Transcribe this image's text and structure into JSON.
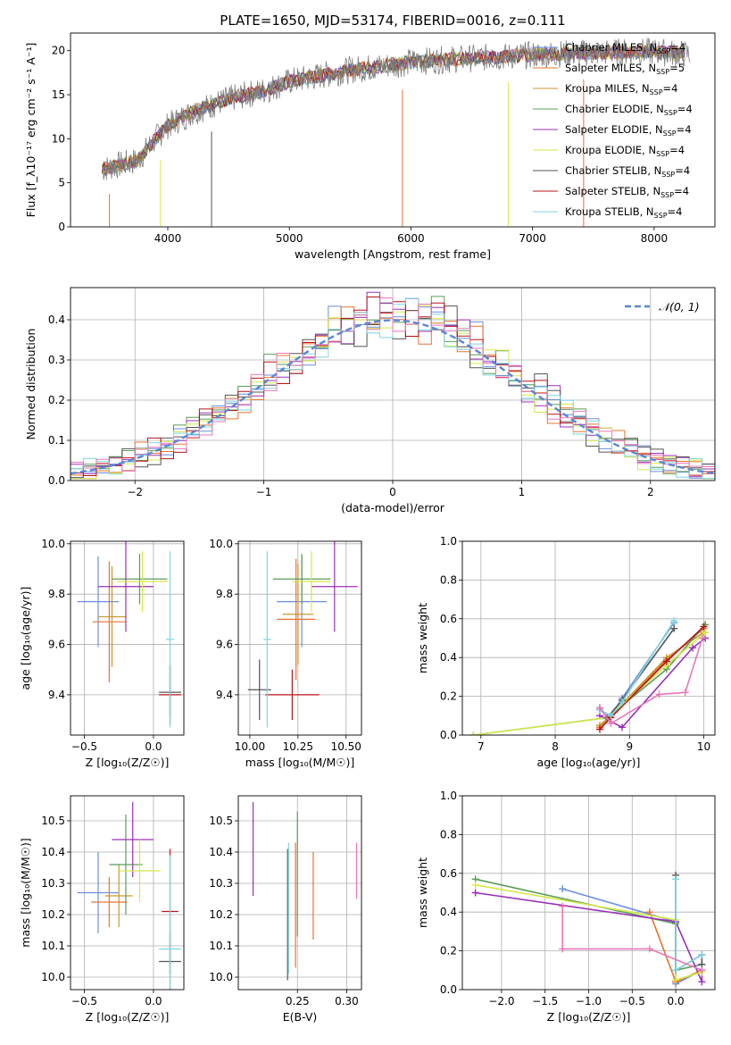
{
  "title": "PLATE=1650, MJD=53174, FIBERID=0016, z=0.111",
  "colors": {
    "Chabrier MILES": "#6b8fdc",
    "Salpeter MILES": "#e8732f",
    "Kroupa MILES": "#c9962c",
    "Chabrier ELODIE": "#5a9e58",
    "Salpeter ELODIE": "#9b30b8",
    "Kroupa ELODIE": "#d6e84a",
    "Chabrier STELIB": "#555555",
    "Salpeter STELIB": "#b8141b",
    "Kroupa STELIB": "#7fd6df",
    "spectrum": "#808080",
    "normal": "#5b86d6",
    "pinkSeries": "#e878b8",
    "greenSeries": "#5a9e58"
  },
  "chart_data": [
    {
      "type": "line",
      "id": "spectrum",
      "title": "PLATE=1650, MJD=53174, FIBERID=0016, z=0.111",
      "xlabel": "wavelength [Angstrom, rest frame]",
      "ylabel": "Flux [f_λ10⁻¹⁷ erg cm⁻² s⁻¹ A⁻¹]",
      "xlim": [
        3200,
        8500
      ],
      "ylim": [
        0,
        22
      ],
      "xticks": [
        "4000",
        "5000",
        "6000",
        "7000",
        "8000"
      ],
      "yticks": [
        "0",
        "5",
        "10",
        "15",
        "20"
      ],
      "grid": false,
      "legend": "top-right",
      "legend_entries": [
        {
          "model": "Chabrier MILES",
          "n": "4"
        },
        {
          "model": "Salpeter MILES",
          "n": "5"
        },
        {
          "model": "Kroupa MILES",
          "n": "4"
        },
        {
          "model": "Chabrier ELODIE",
          "n": "4"
        },
        {
          "model": "Salpeter ELODIE",
          "n": "4"
        },
        {
          "model": "Kroupa ELODIE",
          "n": "4"
        },
        {
          "model": "Chabrier STELIB",
          "n": "4"
        },
        {
          "model": "Salpeter STELIB",
          "n": "4"
        },
        {
          "model": "Kroupa STELIB",
          "n": "4"
        }
      ],
      "continuum": {
        "x": [
          3450,
          3600,
          3750,
          3900,
          4000,
          4200,
          4500,
          4800,
          5000,
          5200,
          5500,
          5800,
          6000,
          6300,
          6600,
          7000,
          7300,
          7600,
          8000,
          8250
        ],
        "y": [
          6.5,
          7.0,
          7.5,
          10.0,
          11.5,
          13.0,
          14.5,
          15.5,
          16.5,
          17.0,
          17.8,
          18.3,
          18.7,
          19.0,
          19.2,
          19.5,
          19.7,
          19.8,
          19.9,
          19.6
        ]
      }
    },
    {
      "type": "step",
      "id": "residuals",
      "xlabel": "(data-model)/error",
      "ylabel": "Normed distribution",
      "xlim": [
        -2.5,
        2.5
      ],
      "ylim": [
        0,
        0.48
      ],
      "xticks": [
        "-2",
        "-1",
        "0",
        "1",
        "2"
      ],
      "yticks": [
        "0.0",
        "0.1",
        "0.2",
        "0.3",
        "0.4"
      ],
      "grid": true,
      "legend": "top-right",
      "legend_entries": [
        {
          "model": "N(0,1)"
        }
      ],
      "bin_centers": [
        -2.45,
        -2.35,
        -2.25,
        -2.15,
        -2.05,
        -1.95,
        -1.85,
        -1.75,
        -1.65,
        -1.55,
        -1.45,
        -1.35,
        -1.25,
        -1.15,
        -1.05,
        -0.95,
        -0.85,
        -0.75,
        -0.65,
        -0.55,
        -0.45,
        -0.35,
        -0.25,
        -0.15,
        -0.05,
        0.05,
        0.15,
        0.25,
        0.35,
        0.45,
        0.55,
        0.65,
        0.75,
        0.85,
        0.95,
        1.05,
        1.15,
        1.25,
        1.35,
        1.45,
        1.55,
        1.65,
        1.75,
        1.85,
        1.95,
        2.05,
        2.15,
        2.25,
        2.35,
        2.45
      ]
    },
    {
      "type": "scatter",
      "id": "age-vs-Z",
      "xlabel": "Z [log₁₀(Z/Z☉)]",
      "ylabel": "age [log₁₀(age/yr)]",
      "xlim": [
        -0.6,
        0.22
      ],
      "ylim": [
        9.24,
        10.01
      ],
      "xticks": [
        "-0.5",
        "0.0"
      ],
      "yticks": [
        "9.4",
        "9.6",
        "9.8",
        "10.0"
      ],
      "grid": true,
      "points": [
        {
          "model": "Chabrier MILES",
          "x": -0.4,
          "y": 9.77,
          "xerr": 0.15,
          "yerr": 0.18
        },
        {
          "model": "Salpeter MILES",
          "x": -0.32,
          "y": 9.69,
          "xerr": 0.12,
          "yerr": 0.24
        },
        {
          "model": "Kroupa MILES",
          "x": -0.3,
          "y": 9.71,
          "xerr": 0.1,
          "yerr": 0.2
        },
        {
          "model": "Chabrier ELODIE",
          "x": -0.1,
          "y": 9.86,
          "xerr": 0.2,
          "yerr": 0.1
        },
        {
          "model": "Salpeter ELODIE",
          "x": -0.2,
          "y": 9.83,
          "xerr": 0.2,
          "yerr": 0.18
        },
        {
          "model": "Kroupa ELODIE",
          "x": -0.08,
          "y": 9.85,
          "xerr": 0.18,
          "yerr": 0.12
        },
        {
          "model": "Chabrier STELIB",
          "x": 0.12,
          "y": 9.41,
          "xerr": 0.08,
          "yerr": 0.1
        },
        {
          "model": "Salpeter STELIB",
          "x": 0.12,
          "y": 9.4,
          "xerr": 0.08,
          "yerr": 0.12
        },
        {
          "model": "Kroupa STELIB",
          "x": 0.12,
          "y": 9.62,
          "xerr": 0.03,
          "yerr": 0.35
        }
      ]
    },
    {
      "type": "scatter",
      "id": "age-vs-mass",
      "xlabel": "mass [log₁₀(M/M☉)]",
      "ylabel": "",
      "xlim": [
        9.94,
        10.58
      ],
      "ylim": [
        9.24,
        10.01
      ],
      "xticks": [
        "10.00",
        "10.25",
        "10.50"
      ],
      "yticks": [
        "9.4",
        "9.6",
        "9.8",
        "10.0"
      ],
      "grid": true,
      "points": [
        {
          "model": "Chabrier MILES",
          "x": 10.27,
          "y": 9.77,
          "xerr": 0.13,
          "yerr": 0.18
        },
        {
          "model": "Salpeter MILES",
          "x": 10.24,
          "y": 9.7,
          "xerr": 0.1,
          "yerr": 0.24
        },
        {
          "model": "Kroupa MILES",
          "x": 10.25,
          "y": 9.72,
          "xerr": 0.08,
          "yerr": 0.2
        },
        {
          "model": "Chabrier ELODIE",
          "x": 10.27,
          "y": 9.86,
          "xerr": 0.15,
          "yerr": 0.1
        },
        {
          "model": "Salpeter ELODIE",
          "x": 10.44,
          "y": 9.83,
          "xerr": 0.12,
          "yerr": 0.18
        },
        {
          "model": "Kroupa ELODIE",
          "x": 10.32,
          "y": 9.85,
          "xerr": 0.1,
          "yerr": 0.12
        },
        {
          "model": "Chabrier STELIB",
          "x": 10.05,
          "y": 9.42,
          "xerr": 0.06,
          "yerr": 0.12
        },
        {
          "model": "Salpeter STELIB",
          "x": 10.22,
          "y": 9.4,
          "xerr": 0.14,
          "yerr": 0.1
        },
        {
          "model": "Kroupa STELIB",
          "x": 10.09,
          "y": 9.62,
          "xerr": 0.02,
          "yerr": 0.35
        }
      ]
    },
    {
      "type": "line",
      "id": "massweight-vs-age",
      "xlabel": "age [log₁₀(age/yr)]",
      "ylabel": "mass weight",
      "xlim": [
        6.75,
        10.15
      ],
      "ylim": [
        0,
        1
      ],
      "xticks": [
        "7",
        "8",
        "9",
        "10"
      ],
      "yticks": [
        "0.0",
        "0.2",
        "0.4",
        "0.6",
        "0.8",
        "1.0"
      ],
      "grid": true,
      "series": [
        {
          "model": "Chabrier MILES",
          "x": [
            8.6,
            8.75,
            8.9,
            9.6
          ],
          "y": [
            0.13,
            0.1,
            0.19,
            0.58
          ]
        },
        {
          "model": "Salpeter MILES",
          "x": [
            8.6,
            8.75,
            9.5,
            10.0
          ],
          "y": [
            0.04,
            0.1,
            0.39,
            0.55
          ]
        },
        {
          "model": "Kroupa MILES",
          "x": [
            8.6,
            8.75,
            9.5,
            10.0
          ],
          "y": [
            0.05,
            0.1,
            0.4,
            0.53
          ]
        },
        {
          "model": "Chabrier ELODIE",
          "x": [
            6.9,
            8.7,
            9.5,
            10.02
          ],
          "y": [
            0.0,
            0.09,
            0.34,
            0.57
          ]
        },
        {
          "model": "Salpeter ELODIE",
          "x": [
            8.6,
            8.9,
            9.85,
            10.02
          ],
          "y": [
            0.1,
            0.04,
            0.45,
            0.5
          ]
        },
        {
          "model": "Kroupa ELODIE",
          "x": [
            6.9,
            8.7,
            9.5,
            10.02
          ],
          "y": [
            0.0,
            0.09,
            0.36,
            0.53
          ]
        },
        {
          "model": "Chabrier STELIB",
          "x": [
            8.6,
            8.7,
            8.9,
            9.6
          ],
          "y": [
            0.14,
            0.09,
            0.18,
            0.55
          ]
        },
        {
          "model": "Salpeter STELIB",
          "x": [
            8.6,
            8.75,
            9.5,
            10.0
          ],
          "y": [
            0.03,
            0.09,
            0.38,
            0.56
          ]
        },
        {
          "model": "Kroupa STELIB",
          "x": [
            8.6,
            8.75,
            8.9,
            9.6
          ],
          "y": [
            0.13,
            0.1,
            0.17,
            0.59
          ]
        },
        {
          "model": "pink",
          "x": [
            8.6,
            8.75,
            9.4,
            9.75,
            9.98
          ],
          "y": [
            0.14,
            0.06,
            0.21,
            0.22,
            0.5
          ]
        }
      ]
    },
    {
      "type": "scatter",
      "id": "mass-vs-Z",
      "xlabel": "Z [log₁₀(Z/Z☉)]",
      "ylabel": "mass [log₁₀(M/M☉)]",
      "xlim": [
        -0.6,
        0.22
      ],
      "ylim": [
        9.96,
        10.58
      ],
      "xticks": [
        "-0.5",
        "0.0"
      ],
      "yticks": [
        "10.0",
        "10.1",
        "10.2",
        "10.3",
        "10.4",
        "10.5"
      ],
      "grid": true,
      "points": [
        {
          "model": "Chabrier MILES",
          "x": -0.4,
          "y": 10.27,
          "xerr": 0.15,
          "yerr": 0.13
        },
        {
          "model": "Salpeter MILES",
          "x": -0.32,
          "y": 10.24,
          "xerr": 0.13,
          "yerr": 0.08
        },
        {
          "model": "Kroupa MILES",
          "x": -0.25,
          "y": 10.26,
          "xerr": 0.1,
          "yerr": 0.1
        },
        {
          "model": "Chabrier ELODIE",
          "x": -0.2,
          "y": 10.36,
          "xerr": 0.12,
          "yerr": 0.16
        },
        {
          "model": "Salpeter ELODIE",
          "x": -0.15,
          "y": 10.44,
          "xerr": 0.15,
          "yerr": 0.12
        },
        {
          "model": "Kroupa ELODIE",
          "x": -0.1,
          "y": 10.34,
          "xerr": 0.15,
          "yerr": 0.1
        },
        {
          "model": "Chabrier STELIB",
          "x": 0.12,
          "y": 10.05,
          "xerr": 0.08,
          "yerr": 0.09
        },
        {
          "model": "Salpeter STELIB",
          "x": 0.12,
          "y": 10.21,
          "xerr": 0.06,
          "yerr": 0.2
        },
        {
          "model": "Kroupa STELIB",
          "x": 0.12,
          "y": 10.09,
          "xerr": 0.08,
          "yerr": 0.3
        }
      ]
    },
    {
      "type": "scatter",
      "id": "mass-vs-ebv",
      "xlabel": "E(B-V)",
      "ylabel": "",
      "xlim": [
        0.19,
        0.315
      ],
      "ylim": [
        9.96,
        10.58
      ],
      "xticks": [
        "0.25",
        "0.30"
      ],
      "yticks": [
        "10.0",
        "10.1",
        "10.2",
        "10.3",
        "10.4",
        "10.5"
      ],
      "grid": true,
      "points": [
        {
          "model": "Salpeter ELODIE",
          "x": 0.205,
          "y": 10.41,
          "yerr": 0.15
        },
        {
          "model": "Chabrier STELIB",
          "x": 0.24,
          "y": 10.2,
          "yerr": 0.21
        },
        {
          "model": "Kroupa STELIB",
          "x": 0.241,
          "y": 10.22,
          "yerr": 0.21
        },
        {
          "model": "Salpeter MILES",
          "x": 0.248,
          "y": 10.23,
          "yerr": 0.2
        },
        {
          "model": "Chabrier ELODIE",
          "x": 0.25,
          "y": 10.33,
          "yerr": 0.2
        },
        {
          "model": "Salpeter MILES",
          "x": 0.266,
          "y": 10.26,
          "yerr": 0.14
        },
        {
          "model": "pink",
          "x": 0.31,
          "y": 10.34,
          "yerr": 0.09
        }
      ]
    },
    {
      "type": "line",
      "id": "massweight-vs-Z",
      "xlabel": "Z [log₁₀(Z/Z☉)]",
      "ylabel": "mass weight",
      "xlim": [
        -2.45,
        0.45
      ],
      "ylim": [
        0,
        1
      ],
      "xticks": [
        "-2.0",
        "-1.5",
        "-1.0",
        "-0.5",
        "0.0"
      ],
      "yticks": [
        "0.0",
        "0.2",
        "0.4",
        "0.6",
        "0.8",
        "1.0"
      ],
      "grid": true,
      "series": [
        {
          "model": "Chabrier MILES",
          "x": [
            -1.3,
            0.0,
            0.0,
            0.3
          ],
          "y": [
            0.52,
            0.35,
            0.03,
            0.1
          ]
        },
        {
          "model": "Salpeter MILES",
          "x": [
            -0.3,
            0.0,
            0.3
          ],
          "y": [
            0.4,
            0.04,
            0.1
          ]
        },
        {
          "model": "Chabrier ELODIE",
          "x": [
            -2.3,
            0.0,
            0.0,
            0.3
          ],
          "y": [
            0.57,
            0.34,
            0.1,
            0.13
          ]
        },
        {
          "model": "Salpeter ELODIE",
          "x": [
            -2.3,
            0.0,
            0.3,
            0.3
          ],
          "y": [
            0.5,
            0.35,
            0.04,
            0.1
          ]
        },
        {
          "model": "Kroupa ELODIE",
          "x": [
            -2.3,
            0.0,
            0.0,
            0.3
          ],
          "y": [
            0.54,
            0.36,
            0.05,
            0.09
          ]
        },
        {
          "model": "Chabrier STELIB",
          "x": [
            0.0,
            0.0,
            0.3,
            0.3
          ],
          "y": [
            0.59,
            0.1,
            0.18,
            0.13
          ]
        },
        {
          "model": "Kroupa STELIB",
          "x": [
            0.0,
            0.0,
            0.3
          ],
          "y": [
            0.57,
            0.1,
            0.18
          ]
        },
        {
          "model": "pink",
          "x": [
            -1.3,
            -1.3,
            -0.3,
            0.3
          ],
          "y": [
            0.43,
            0.21,
            0.21,
            0.1
          ]
        }
      ]
    }
  ]
}
